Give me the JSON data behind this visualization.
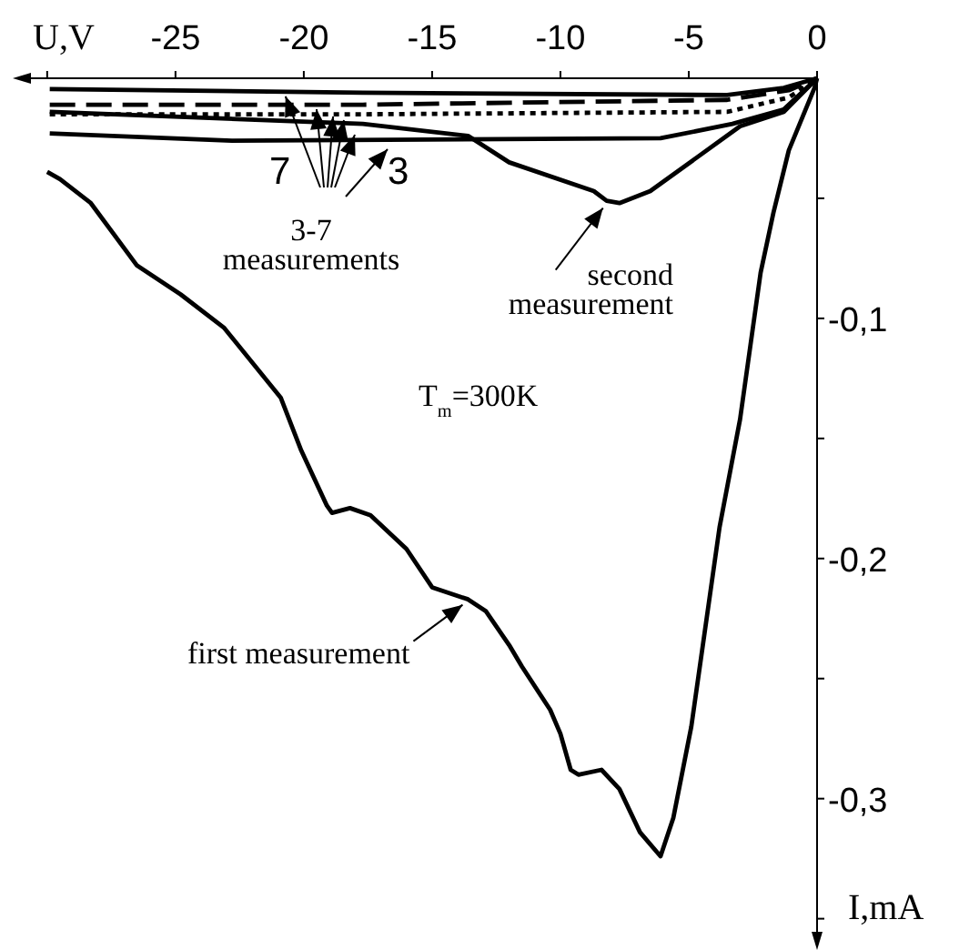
{
  "chart_data": {
    "type": "line",
    "xlabel": "U,V",
    "ylabel": "I,mA",
    "xlim": [
      -31.2,
      0
    ],
    "ylim": [
      -0.36,
      0
    ],
    "xticks": [
      {
        "value": -30,
        "label": null
      },
      -25,
      -20,
      -15,
      -10,
      -5,
      0
    ],
    "yticks": [
      {
        "value": -0.05,
        "label": null
      },
      {
        "value": -0.1,
        "label": "-0,1"
      },
      {
        "value": -0.15,
        "label": null
      },
      {
        "value": -0.2,
        "label": "-0,2"
      },
      {
        "value": -0.25,
        "label": null
      },
      {
        "value": -0.3,
        "label": "-0,3"
      },
      {
        "value": -0.35,
        "label": null
      }
    ],
    "grid": false,
    "marker": "none",
    "series": [
      {
        "color": "#000000",
        "line_style": "solid",
        "x": [
          -30.0,
          -29.5,
          -28.3,
          -26.5,
          -24.8,
          -23.1,
          -20.9,
          -20.1,
          -19.1,
          -18.9,
          -18.2,
          -17.4,
          -16.0,
          -15.0,
          -13.6,
          -12.9,
          -12.0,
          -11.5,
          -10.4,
          -10.0,
          -9.6,
          -9.3,
          -8.4,
          -7.7,
          -6.9,
          -6.1,
          -5.6,
          -4.9,
          -3.8,
          -3.0,
          -2.2,
          -1.7,
          -1.1,
          -0.1,
          0
        ],
        "values": [
          -0.039,
          -0.042,
          -0.052,
          -0.078,
          -0.09,
          -0.104,
          -0.133,
          -0.155,
          -0.178,
          -0.181,
          -0.179,
          -0.182,
          -0.196,
          -0.212,
          -0.217,
          -0.222,
          -0.236,
          -0.245,
          -0.263,
          -0.273,
          -0.288,
          -0.29,
          -0.288,
          -0.296,
          -0.314,
          -0.324,
          -0.308,
          -0.27,
          -0.187,
          -0.142,
          -0.081,
          -0.056,
          -0.03,
          -0.004,
          0
        ]
      },
      {
        "color": "#000000",
        "line_style": "solid",
        "x": [
          -29.9,
          -17.7,
          -13.6,
          -12.0,
          -8.7,
          -8.2,
          -7.7,
          -6.5,
          -3.0,
          -1.3,
          0
        ],
        "values": [
          -0.014,
          -0.019,
          -0.024,
          -0.035,
          -0.047,
          -0.051,
          -0.052,
          -0.047,
          -0.02,
          -0.014,
          0
        ]
      },
      {
        "color": "#000000",
        "line_style": "solid",
        "x": [
          -29.9,
          -17.7,
          -3.5,
          -1.3,
          0
        ],
        "values": [
          -0.0045,
          -0.006,
          -0.007,
          -0.004,
          0
        ]
      },
      {
        "color": "#000000",
        "line_style": "dashed",
        "x": [
          -29.9,
          -17.7,
          -3.5,
          -1.1,
          0
        ],
        "values": [
          -0.011,
          -0.011,
          -0.009,
          -0.005,
          0
        ]
      },
      {
        "color": "#000000",
        "line_style": "dotted",
        "x": [
          -29.9,
          -17.7,
          -3.5,
          -1.1,
          0
        ],
        "values": [
          -0.015,
          -0.015,
          -0.014,
          -0.008,
          0
        ]
      },
      {
        "color": "#000000",
        "line_style": "solid",
        "x": [
          -29.9,
          -22.8,
          -6.1,
          -3.3,
          -1.3,
          0
        ],
        "values": [
          -0.023,
          -0.026,
          -0.025,
          -0.019,
          -0.013,
          0
        ]
      }
    ],
    "annotations": [
      "T$_{m}$=300K",
      {
        "text": "3-7 measurements",
        "x": -20.5,
        "y": -0.006
      },
      "7",
      "3",
      {
        "text": "second measurement",
        "x": -8.2,
        "y": -0.051
      },
      {
        "text": "first measurement",
        "x": -13.6,
        "y": -0.217
      }
    ]
  }
}
